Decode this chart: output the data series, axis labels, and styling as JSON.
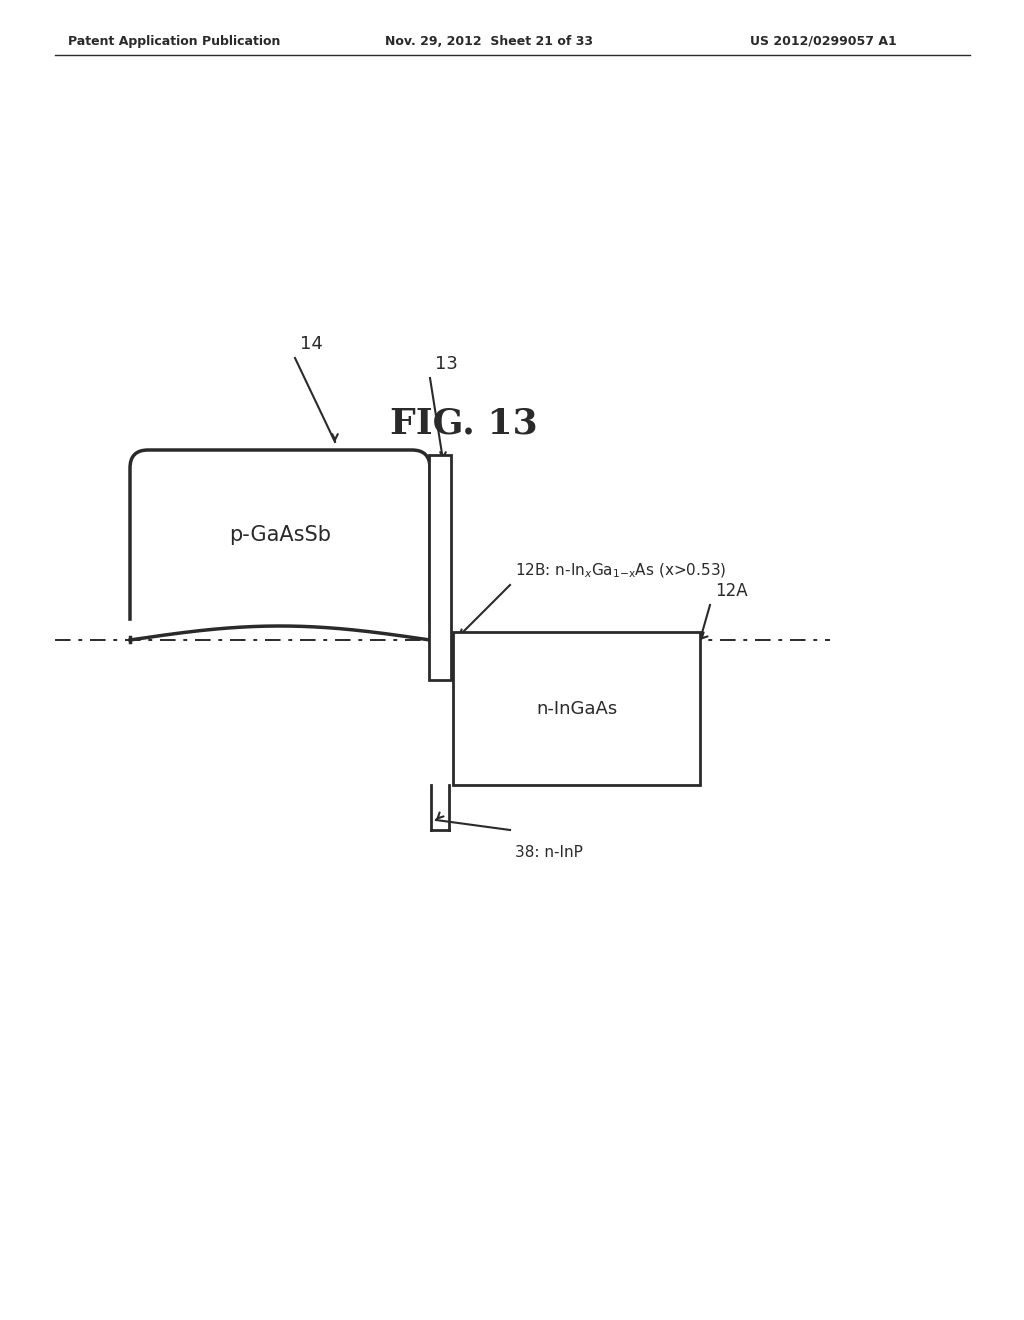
{
  "title": "FIG. 13",
  "header_left": "Patent Application Publication",
  "header_center": "Nov. 29, 2012  Sheet 21 of 33",
  "header_right": "US 2012/0299057 A1",
  "bg_color": "#ffffff",
  "line_color": "#2a2a2a",
  "label_14": "14",
  "label_13": "13",
  "label_12B_text": "12B: n-In$_x$Ga$_{1\\text{-}x}$As (x>0.53)",
  "label_12A": "12A",
  "label_nInGaAs": "n-InGaAs",
  "label_38": "38: n-InP",
  "label_pGaAsSb": "p-GaAsSb"
}
